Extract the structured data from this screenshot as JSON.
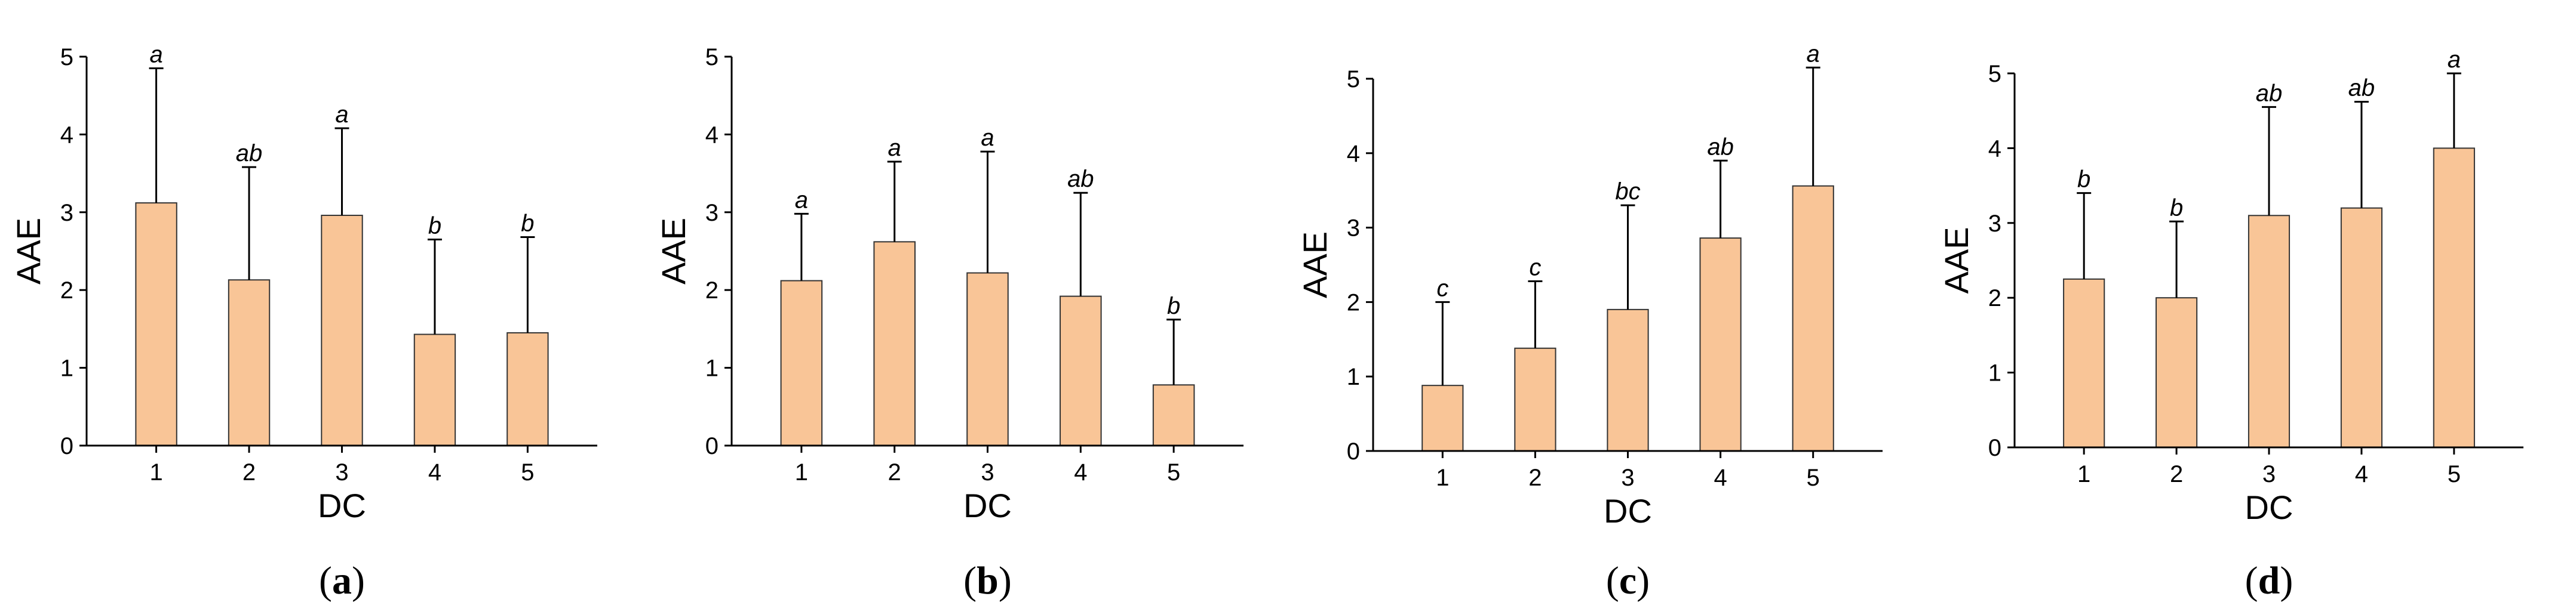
{
  "chart_data": [
    {
      "type": "bar",
      "panel_label": "a",
      "xlabel": "DC",
      "ylabel": "AAE",
      "categories": [
        "1",
        "2",
        "3",
        "4",
        "5"
      ],
      "values": [
        3.12,
        2.13,
        2.96,
        1.43,
        1.45
      ],
      "error_upper": [
        4.85,
        3.58,
        4.08,
        2.65,
        2.68
      ],
      "significance": [
        "a",
        "ab",
        "a",
        "b",
        "b"
      ],
      "ylim": [
        0,
        5
      ],
      "yticks": [
        "0",
        "1",
        "2",
        "3",
        "4",
        "5"
      ],
      "bar_color": "#f9c597",
      "grid": false
    },
    {
      "type": "bar",
      "panel_label": "b",
      "xlabel": "DC",
      "ylabel": "AAE",
      "categories": [
        "1",
        "2",
        "3",
        "4",
        "5"
      ],
      "values": [
        2.12,
        2.62,
        2.22,
        1.92,
        0.78
      ],
      "error_upper": [
        2.98,
        3.65,
        3.78,
        3.25,
        1.62
      ],
      "significance": [
        "a",
        "a",
        "a",
        "ab",
        "b"
      ],
      "ylim": [
        0,
        5
      ],
      "yticks": [
        "0",
        "1",
        "2",
        "3",
        "4",
        "5"
      ],
      "bar_color": "#f9c597",
      "grid": false
    },
    {
      "type": "bar",
      "panel_label": "c",
      "xlabel": "DC",
      "ylabel": "AAE",
      "categories": [
        "1",
        "2",
        "3",
        "4",
        "5"
      ],
      "values": [
        0.88,
        1.38,
        1.9,
        2.86,
        3.56
      ],
      "error_upper": [
        2.0,
        2.28,
        3.3,
        3.9,
        5.15
      ],
      "significance": [
        "c",
        "c",
        "bc",
        "ab",
        "a"
      ],
      "ylim": [
        0,
        5
      ],
      "yticks": [
        "0",
        "1",
        "2",
        "3",
        "4",
        "5"
      ],
      "bar_color": "#f9c597",
      "grid": false
    },
    {
      "type": "bar",
      "panel_label": "d",
      "xlabel": "DC",
      "ylabel": "AAE",
      "categories": [
        "1",
        "2",
        "3",
        "4",
        "5"
      ],
      "values": [
        2.25,
        2.0,
        3.1,
        3.2,
        4.0
      ],
      "error_upper": [
        3.4,
        3.02,
        4.55,
        4.62,
        5.0
      ],
      "significance": [
        "b",
        "b",
        "ab",
        "ab",
        "a"
      ],
      "ylim": [
        0,
        5
      ],
      "yticks": [
        "0",
        "1",
        "2",
        "3",
        "4",
        "5"
      ],
      "bar_color": "#f9c597",
      "grid": false
    }
  ]
}
